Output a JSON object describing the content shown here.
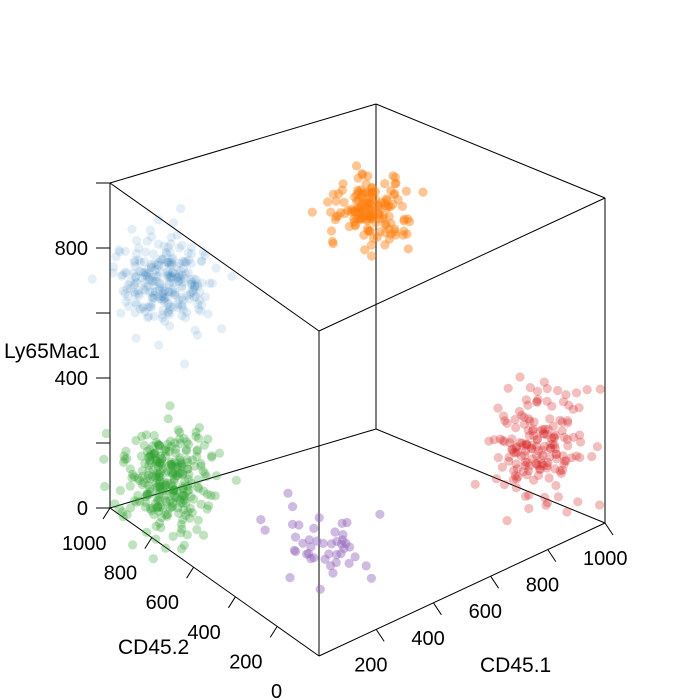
{
  "chart_data": {
    "type": "scatter",
    "projection": "3d",
    "title": "",
    "xlabel": "CD45.1",
    "ylabel": "CD45.2",
    "zlabel": "Ly65Mac1",
    "xlim": [
      0,
      1000
    ],
    "ylim": [
      0,
      1000
    ],
    "zlim": [
      0,
      1000
    ],
    "x_ticks": [
      200,
      400,
      600,
      800,
      1000
    ],
    "y_ticks": [
      0,
      200,
      400,
      600,
      800,
      1000
    ],
    "z_ticks": [
      0,
      400,
      800
    ],
    "x_tick_labels": [
      "200",
      "400",
      "600",
      "800",
      "1000"
    ],
    "y_tick_labels": [
      "0",
      "200",
      "400",
      "600",
      "800",
      "1000"
    ],
    "z_tick_labels": [
      "0",
      "400",
      "800"
    ],
    "grid": false,
    "legend": "none",
    "clusters": [
      {
        "color": "#1f77b4",
        "opacity": 0.12,
        "center": [
          110,
          880,
          720
        ],
        "spread": [
          70,
          70,
          60
        ],
        "count": 260
      },
      {
        "color": "#ff7f0e",
        "opacity": 0.45,
        "center": [
          880,
          900,
          730
        ],
        "spread": [
          55,
          55,
          45
        ],
        "count": 150
      },
      {
        "color": "#2ca02c",
        "opacity": 0.3,
        "center": [
          130,
          900,
          90
        ],
        "spread": [
          70,
          70,
          75
        ],
        "count": 280
      },
      {
        "color": "#d62728",
        "opacity": 0.3,
        "center": [
          880,
          130,
          250
        ],
        "spread": [
          60,
          60,
          75
        ],
        "count": 170
      },
      {
        "color": "#9467bd",
        "opacity": 0.45,
        "center": [
          320,
          360,
          50
        ],
        "spread": [
          75,
          100,
          40
        ],
        "count": 45
      }
    ]
  }
}
